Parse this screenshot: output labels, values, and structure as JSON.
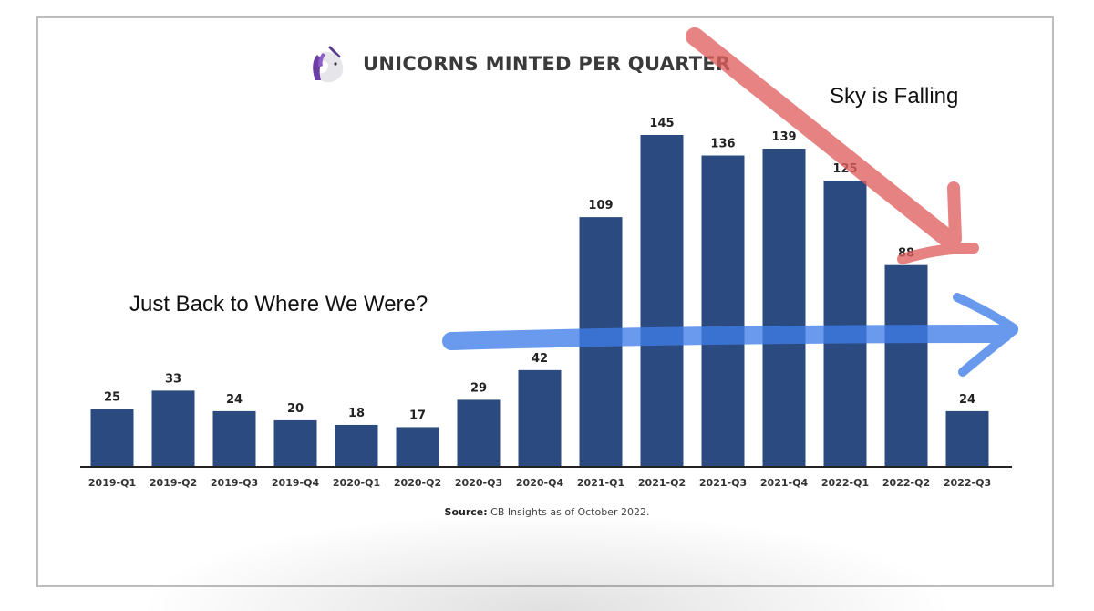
{
  "chart_data": {
    "type": "bar",
    "title": "UNICORNS MINTED PER QUARTER",
    "categories": [
      "2019-Q1",
      "2019-Q2",
      "2019-Q3",
      "2019-Q4",
      "2020-Q1",
      "2020-Q2",
      "2020-Q3",
      "2020-Q4",
      "2021-Q1",
      "2021-Q2",
      "2021-Q3",
      "2021-Q4",
      "2022-Q1",
      "2022-Q2",
      "2022-Q3"
    ],
    "values": [
      25,
      33,
      24,
      20,
      18,
      17,
      29,
      42,
      109,
      145,
      136,
      139,
      125,
      88,
      24
    ],
    "xlabel": "",
    "ylabel": "",
    "grid": false,
    "bar_color": "#2b4a7f",
    "annotations": [
      {
        "text": "Sky is Falling",
        "color": "#e06060"
      },
      {
        "text": "Just Back to Where We Were?",
        "color": "#3f7de8"
      }
    ],
    "source_label": "Source:",
    "source_text": "CB Insights as of October 2022."
  },
  "icons": {
    "logo": "unicorn-icon"
  },
  "colors": {
    "bar": "#2b4a7f",
    "red_arrow": "#e06060",
    "blue_arrow": "#3f7de8",
    "text": "#222222"
  }
}
